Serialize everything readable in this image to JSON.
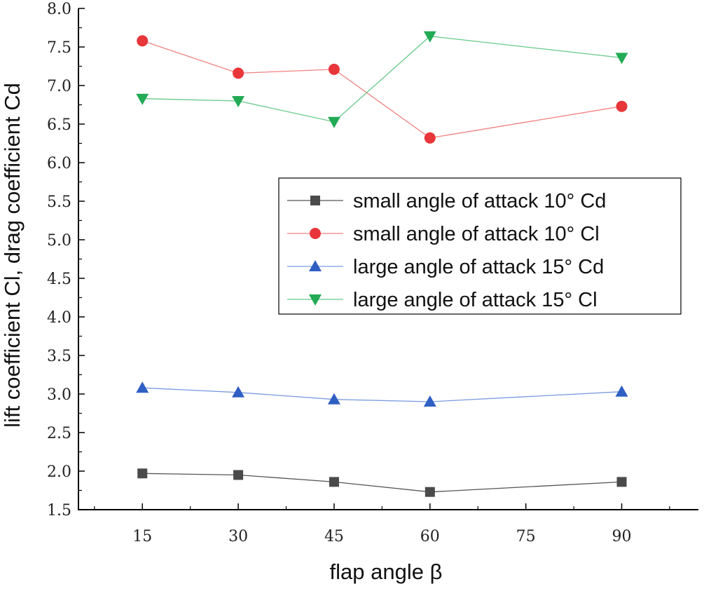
{
  "chart_data": {
    "type": "line",
    "title": "",
    "xlabel": "flap angle β",
    "ylabel": "lift coefficient Cl, drag coefficient Cd",
    "x": [
      15,
      30,
      45,
      60,
      90
    ],
    "xlim": [
      5,
      102
    ],
    "ylim": [
      1.5,
      8.0
    ],
    "xticks": [
      15,
      30,
      45,
      60,
      75,
      90
    ],
    "xtick_labels": [
      "15",
      "30",
      "45",
      "60",
      "75",
      "90"
    ],
    "yticks": [
      1.5,
      2.0,
      2.5,
      3.0,
      3.5,
      4.0,
      4.5,
      5.0,
      5.5,
      6.0,
      6.5,
      7.0,
      7.5,
      8.0
    ],
    "ytick_labels": [
      "1.5",
      "2.0",
      "2.5",
      "3.0",
      "3.5",
      "4.0",
      "4.5",
      "5.0",
      "5.5",
      "6.0",
      "6.5",
      "7.0",
      "7.5",
      "8.0"
    ],
    "grid": false,
    "legend_position": "center-right",
    "series": [
      {
        "name": "small angle of attack 10° Cd",
        "marker": "square",
        "color": "#4a4a4a",
        "line_color": "#555555",
        "values": [
          1.97,
          1.95,
          1.86,
          1.73,
          1.86
        ]
      },
      {
        "name": "small angle of attack 10° Cl",
        "marker": "circle",
        "color": "#e8363a",
        "line_color": "#f08080",
        "values": [
          7.58,
          7.16,
          7.21,
          6.32,
          6.73
        ]
      },
      {
        "name": "large angle of attack 15° Cd",
        "marker": "triangle-up",
        "color": "#2f5fc4",
        "line_color": "#7a9be0",
        "values": [
          3.08,
          3.02,
          2.93,
          2.9,
          3.03
        ]
      },
      {
        "name": "large angle of attack 15° Cl",
        "marker": "triangle-down",
        "color": "#22aa55",
        "line_color": "#66c98a",
        "values": [
          6.83,
          6.8,
          6.53,
          7.64,
          7.36
        ]
      }
    ]
  }
}
